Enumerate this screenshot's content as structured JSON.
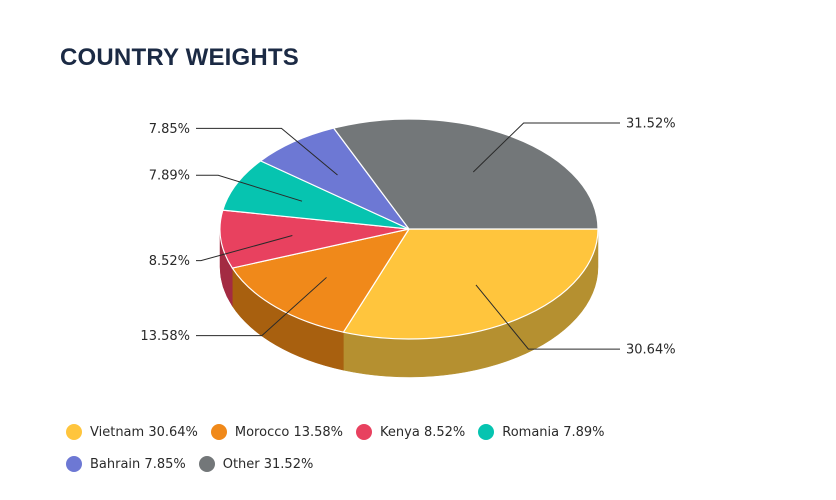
{
  "title": "COUNTRY WEIGHTS",
  "chart_data": {
    "type": "pie",
    "style": "3d",
    "start_angle_deg": 0,
    "direction": "clockwise",
    "slices": [
      {
        "name": "Vietnam",
        "value": 30.64,
        "label": "30.64%",
        "legend": "Vietnam 30.64%",
        "color": "#ffc53d",
        "side_color": "#b59030"
      },
      {
        "name": "Morocco",
        "value": 13.58,
        "label": "13.58%",
        "legend": "Morocco 13.58%",
        "color": "#f0891a",
        "side_color": "#a8600f"
      },
      {
        "name": "Kenya",
        "value": 8.52,
        "label": "8.52%",
        "legend": "Kenya 8.52%",
        "color": "#e8415f",
        "side_color": "#a32b42"
      },
      {
        "name": "Romania",
        "value": 7.89,
        "label": "7.89%",
        "legend": "Romania 7.89%",
        "color": "#06c4b0",
        "side_color": "#048a7c"
      },
      {
        "name": "Bahrain",
        "value": 7.85,
        "label": "7.85%",
        "legend": "Bahrain 7.85%",
        "color": "#6d78d4",
        "side_color": "#4b5394"
      },
      {
        "name": "Other",
        "value": 31.52,
        "label": "31.52%",
        "legend": "Other 31.52%",
        "color": "#737779",
        "side_color": "#4f5254"
      }
    ],
    "legend_position": "bottom"
  }
}
